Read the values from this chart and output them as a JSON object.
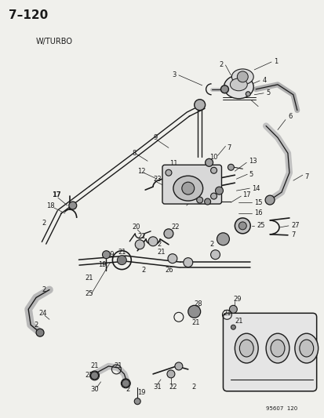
{
  "title": "7–120",
  "subtitle": "W/TURBO",
  "footer": "95607  120",
  "bg_color": "#f0f0ec",
  "line_color": "#1a1a1a",
  "text_color": "#1a1a1a",
  "figsize": [
    4.14,
    5.33
  ],
  "dpi": 100
}
